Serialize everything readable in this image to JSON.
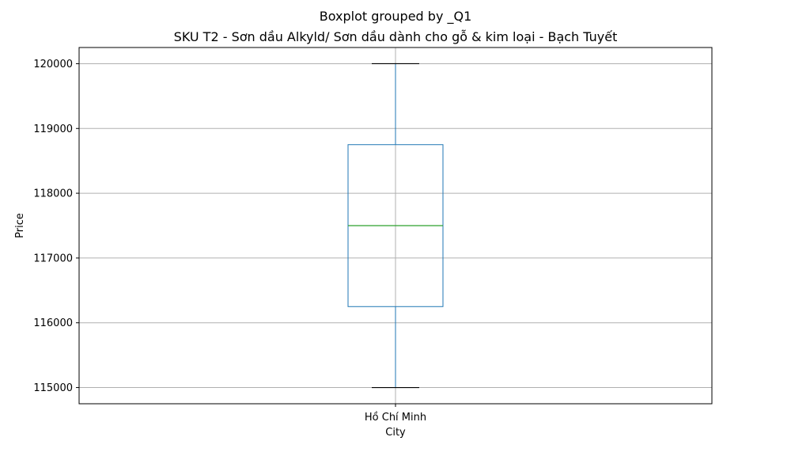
{
  "chart_data": {
    "type": "boxplot",
    "suptitle": "Boxplot grouped by _Q1",
    "title": "SKU T2 - Sơn dầu Alkyld/ Sơn dầu dành cho gỗ & kim loại - Bạch Tuyết",
    "xlabel": "City",
    "ylabel": "Price",
    "categories": [
      "Hồ Chí Minh"
    ],
    "boxes": [
      {
        "category": "Hồ Chí Minh",
        "whisker_low": 115000,
        "q1": 116250,
        "median": 117500,
        "q3": 118750,
        "whisker_high": 120000
      }
    ],
    "ylim": [
      114750,
      120250
    ],
    "yticks": [
      115000,
      116000,
      117000,
      118000,
      119000,
      120000
    ],
    "grid": true,
    "colors": {
      "box": "#1f77b4",
      "median": "#2ca02c",
      "whisker": "#1f77b4",
      "cap": "#000000",
      "grid": "#b0b0b0",
      "axes": "#000000"
    }
  }
}
